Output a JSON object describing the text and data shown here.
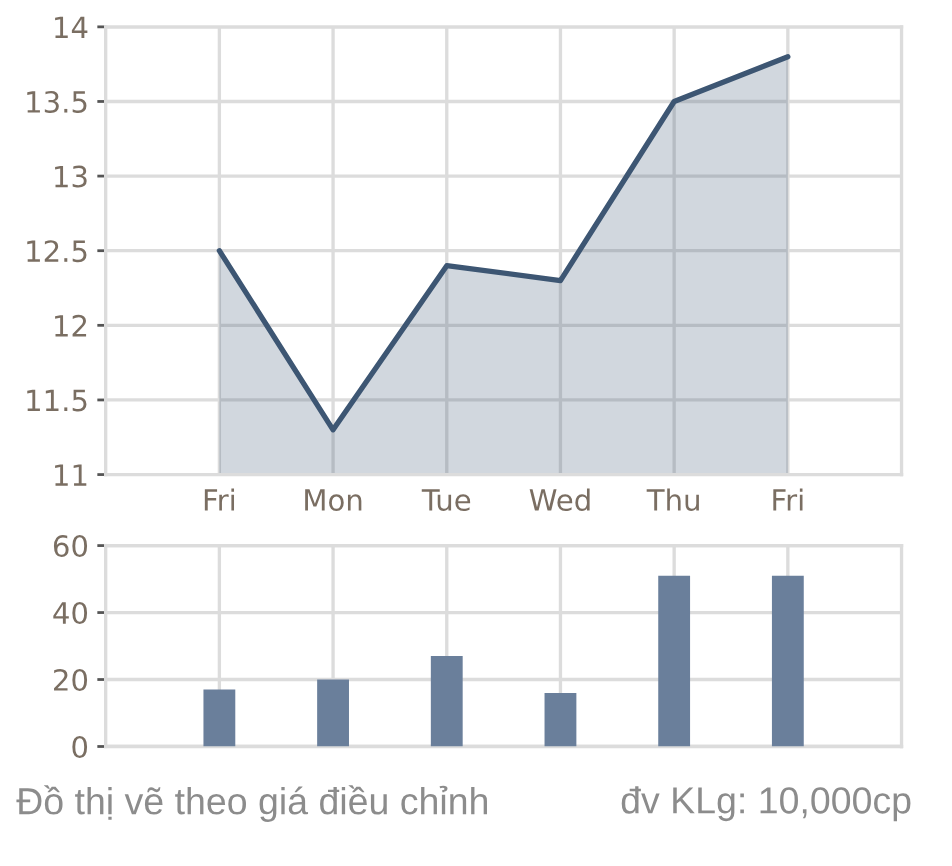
{
  "chart_data": [
    {
      "type": "area",
      "categories": [
        "Fri",
        "Mon",
        "Tue",
        "Wed",
        "Thu",
        "Fri"
      ],
      "series": [
        {
          "color": "#3d5673",
          "values": [
            12.5,
            11.3,
            12.4,
            12.3,
            13.5,
            13.8
          ]
        }
      ],
      "ylim": [
        11,
        14
      ],
      "yticks": [
        11,
        11.5,
        12,
        12.5,
        13,
        13.5,
        14
      ],
      "grid": true
    },
    {
      "type": "bar",
      "categories": [
        null,
        null,
        null,
        null,
        null,
        null
      ],
      "values": [
        17,
        20,
        27,
        16,
        51,
        51
      ],
      "color": "#6a7f9b",
      "ylim": [
        0,
        60
      ],
      "yticks": [
        0,
        20,
        40,
        60
      ],
      "grid": true,
      "annotations": [
        "Đồ thị vẽ theo giá điều chỉnh",
        "đv KLg: 10,000cp"
      ]
    }
  ]
}
